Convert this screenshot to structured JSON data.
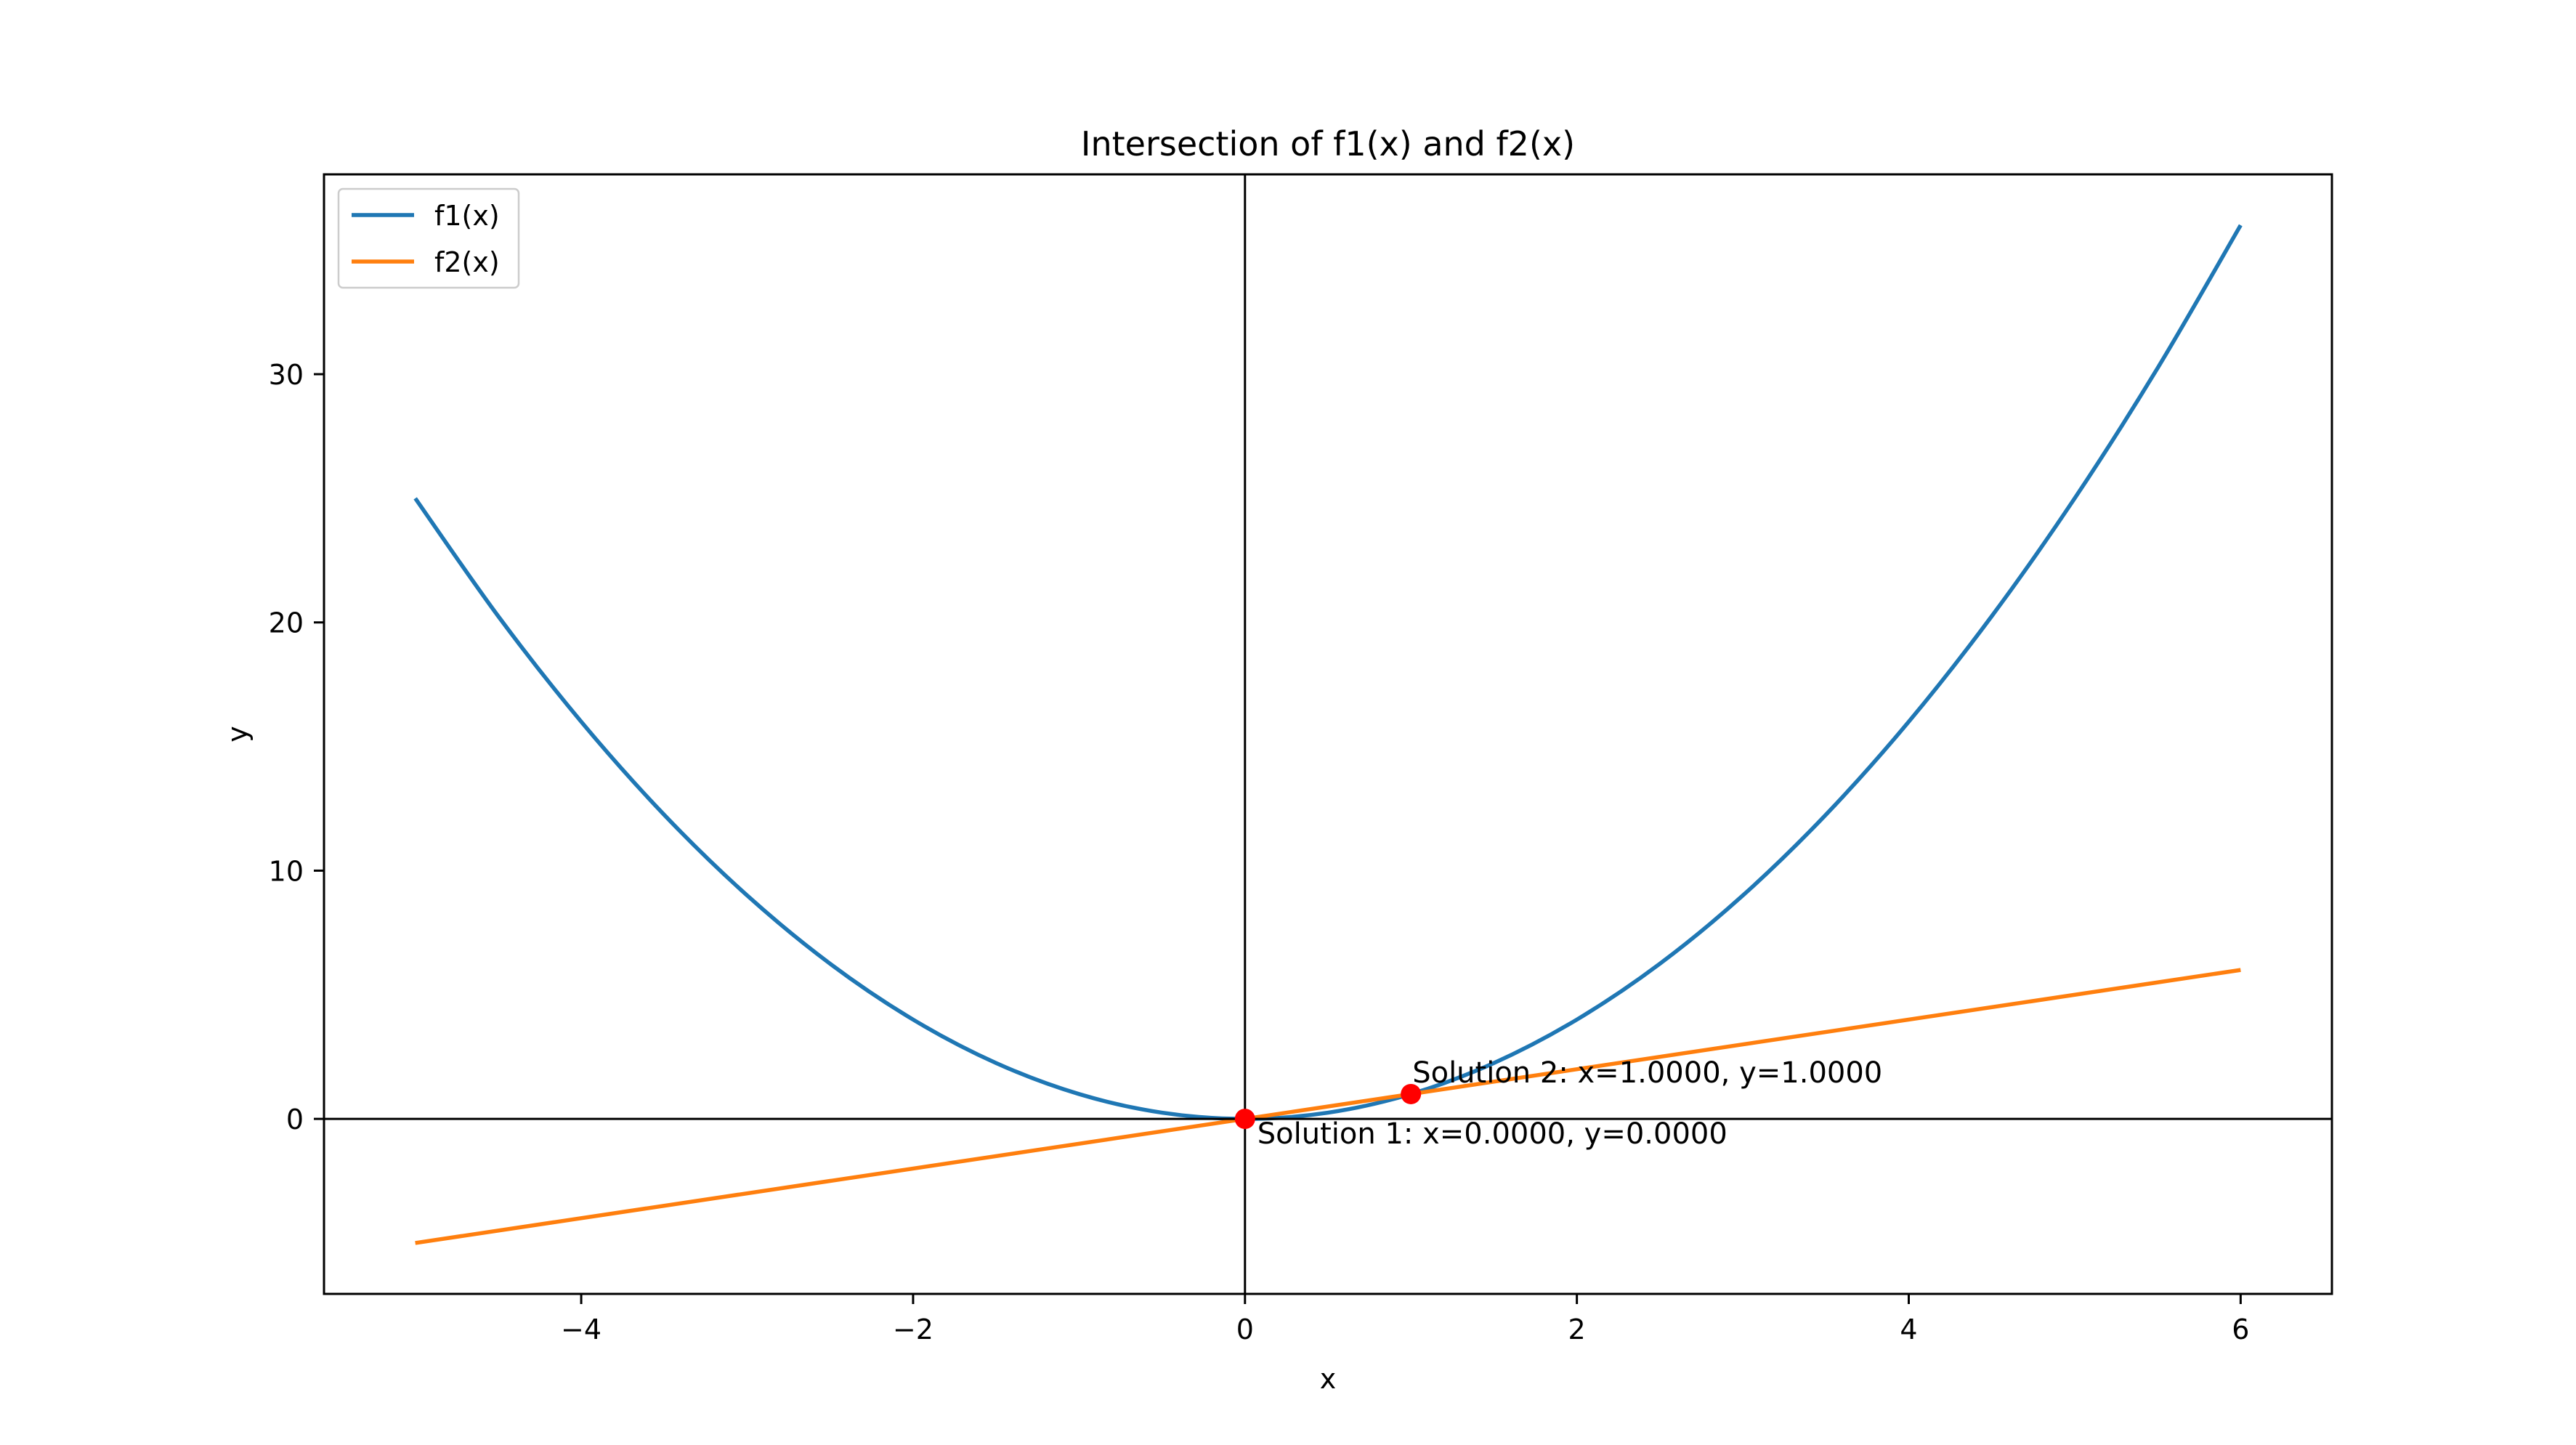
{
  "chart_data": {
    "type": "line",
    "title": "Intersection of f1(x) and f2(x)",
    "xlabel": "x",
    "ylabel": "y",
    "xlim": [
      -5.55,
      6.55
    ],
    "ylim": [
      -7.05,
      38.05
    ],
    "xticks": [
      -4,
      -2,
      0,
      2,
      4,
      6
    ],
    "xtick_labels": [
      "−4",
      "−2",
      "0",
      "2",
      "4",
      "6"
    ],
    "yticks": [
      0,
      10,
      20,
      30
    ],
    "ytick_labels": [
      "0",
      "10",
      "20",
      "30"
    ],
    "grid": false,
    "legend_position": "top-left",
    "reference_lines": {
      "x": 0,
      "y": 0
    },
    "series": [
      {
        "name": "f1(x)",
        "color": "#1f77b4",
        "x": [
          -5,
          -4.5,
          -4,
          -3.5,
          -3,
          -2.5,
          -2,
          -1.5,
          -1,
          -0.5,
          0,
          0.5,
          1,
          1.5,
          2,
          2.5,
          3,
          3.5,
          4,
          4.5,
          5,
          5.5,
          6
        ],
        "y": [
          25,
          20.25,
          16,
          12.25,
          9,
          6.25,
          4,
          2.25,
          1,
          0.25,
          0,
          0.25,
          1,
          2.25,
          4,
          6.25,
          9,
          12.25,
          16,
          20.25,
          25,
          30.25,
          36
        ]
      },
      {
        "name": "f2(x)",
        "color": "#ff7f0e",
        "x": [
          -5,
          6
        ],
        "y": [
          -5,
          6
        ]
      }
    ],
    "points": [
      {
        "x": 0,
        "y": 0,
        "color": "#ff0000",
        "label": "Solution 1: x=0.0000, y=0.0000"
      },
      {
        "x": 1,
        "y": 1,
        "color": "#ff0000",
        "label": "Solution 2: x=1.0000, y=1.0000"
      }
    ]
  }
}
